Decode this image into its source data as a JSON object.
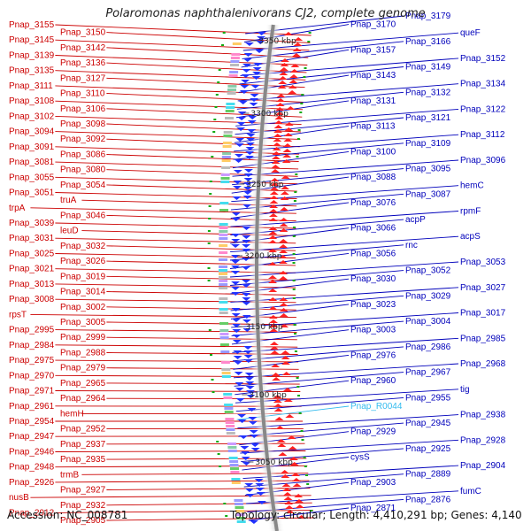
{
  "title": "Polaromonas naphthalenivorans CJ2, complete genome",
  "accession": "Accession: NC_008781",
  "topology": "Topology: circular; Length: 4,410,291 bp; Genes: 4,140",
  "colors": {
    "left_labels": "#cc0000",
    "right_labels": "#0000bb",
    "rna_label": "#33bbee",
    "backbone": "#888888"
  },
  "scale_ticks": [
    "3350 kbp",
    "3300 kbp",
    "3250 kbp",
    "3200 kbp",
    "3150 kbp",
    "3100 kbp",
    "3050 kbp"
  ],
  "left_labels": [
    "Pnap_3155",
    "Pnap_3150",
    "Pnap_3145",
    "Pnap_3142",
    "Pnap_3139",
    "Pnap_3136",
    "Pnap_3135",
    "Pnap_3127",
    "Pnap_3111",
    "Pnap_3110",
    "Pnap_3108",
    "Pnap_3106",
    "Pnap_3102",
    "Pnap_3098",
    "Pnap_3094",
    "Pnap_3092",
    "Pnap_3091",
    "Pnap_3086",
    "Pnap_3081",
    "Pnap_3080",
    "Pnap_3055",
    "Pnap_3054",
    "Pnap_3051",
    "truA",
    "trpA",
    "Pnap_3046",
    "Pnap_3039",
    "leuD",
    "Pnap_3031",
    "Pnap_3032",
    "Pnap_3025",
    "Pnap_3026",
    "Pnap_3021",
    "Pnap_3019",
    "Pnap_3013",
    "Pnap_3014",
    "Pnap_3008",
    "Pnap_3002",
    "rpsT",
    "Pnap_3005",
    "Pnap_2995",
    "Pnap_2999",
    "Pnap_2984",
    "Pnap_2988",
    "Pnap_2975",
    "Pnap_2979",
    "Pnap_2970",
    "Pnap_2965",
    "Pnap_2971",
    "Pnap_2964",
    "Pnap_2961",
    "hemH",
    "Pnap_2954",
    "Pnap_2952",
    "Pnap_2947",
    "Pnap_2937",
    "Pnap_2946",
    "Pnap_2935",
    "Pnap_2948",
    "trmB",
    "Pnap_2926",
    "Pnap_2927",
    "nusB",
    "Pnap_2932",
    "Pnap_2912",
    "Pnap_2905"
  ],
  "right_labels": [
    "Pnap_3179",
    "Pnap_3170",
    "queF",
    "Pnap_3166",
    "Pnap_3157",
    "Pnap_3152",
    "Pnap_3149",
    "Pnap_3143",
    "Pnap_3134",
    "Pnap_3132",
    "Pnap_3131",
    "Pnap_3122",
    "Pnap_3121",
    "Pnap_3113",
    "Pnap_3112",
    "Pnap_3109",
    "Pnap_3100",
    "Pnap_3096",
    "Pnap_3095",
    "Pnap_3088",
    "hemC",
    "Pnap_3087",
    "Pnap_3076",
    "rpmF",
    "acpP",
    "Pnap_3066",
    "acpS",
    "rnc",
    "Pnap_3056",
    "Pnap_3053",
    "Pnap_3052",
    "Pnap_3030",
    "Pnap_3027",
    "Pnap_3029",
    "Pnap_3023",
    "Pnap_3017",
    "Pnap_3004",
    "Pnap_3003",
    "Pnap_2985",
    "Pnap_2986",
    "Pnap_2976",
    "Pnap_2968",
    "Pnap_2967",
    "Pnap_2960",
    "tig",
    "Pnap_2955",
    "Pnap_R0044",
    "Pnap_2938",
    "Pnap_2945",
    "Pnap_2929",
    "Pnap_2928",
    "Pnap_2925",
    "cysS",
    "Pnap_2904",
    "Pnap_2889",
    "Pnap_2903",
    "fumC",
    "Pnap_2876",
    "Pnap_2871"
  ]
}
